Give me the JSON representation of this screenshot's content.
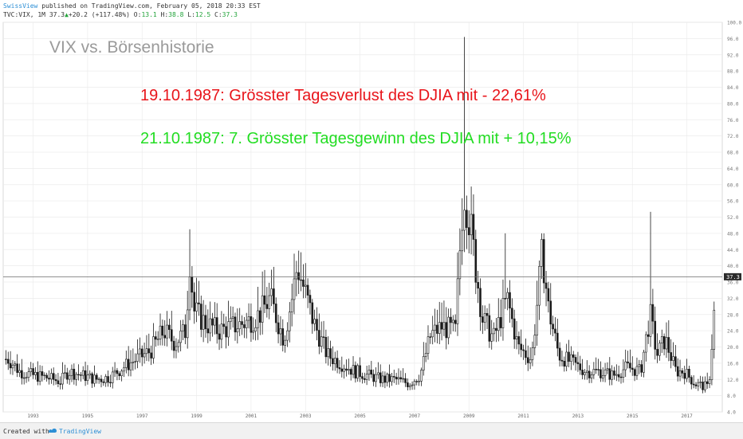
{
  "header": {
    "author": "SwissView",
    "published": "published on TradingView.com, February 05, 2018 20:33 EST",
    "symbol": "TVC:VIX, 1M",
    "last": "37.3",
    "change": "+20.2 (+117.48%)",
    "o_label": "O:",
    "o_value": "13.1",
    "h_label": "H:",
    "h_value": "38.8",
    "l_label": "L:",
    "l_value": "12.5",
    "c_label": "C:",
    "c_value": "37.3"
  },
  "footer": {
    "created": "Created with",
    "brand": "TradingView"
  },
  "colors": {
    "red": "#e8151b",
    "green": "#22dd22",
    "watermark": "#9a9a9a",
    "candle": "#1a1a1a",
    "grid": "#ececec"
  },
  "chart_data": {
    "type": "candlestick",
    "title": "VIX vs. Börsenhistorie",
    "annotations": [
      {
        "text": "19.10.1987: Grösster Tagesverlust des DJIA mit - 22,61%",
        "color": "red"
      },
      {
        "text": "21.10.1987: 7. Grösster Tagesgewinn des DJIA mit + 10,15%",
        "color": "green"
      }
    ],
    "ylim": [
      4,
      100
    ],
    "y_ticks": [
      "4.0",
      "8.0",
      "12.0",
      "16.0",
      "20.0",
      "24.0",
      "28.0",
      "32.0",
      "36.0",
      "40.0",
      "44.0",
      "48.0",
      "52.0",
      "56.0",
      "60.0",
      "64.0",
      "68.0",
      "72.0",
      "76.0",
      "80.0",
      "84.0",
      "88.0",
      "92.0",
      "96.0",
      "100.0"
    ],
    "x_ticks": [
      "1993",
      "1995",
      "1997",
      "1999",
      "2001",
      "2003",
      "2005",
      "2007",
      "2009",
      "2011",
      "2013",
      "2015",
      "2017"
    ],
    "x_range": [
      1991.9,
      2018.3
    ],
    "last_price": 37.3,
    "last_price_label": "37.3",
    "series": [
      {
        "t": 1992.1,
        "v": 17
      },
      {
        "t": 1992.5,
        "v": 14
      },
      {
        "t": 1993.0,
        "v": 13
      },
      {
        "t": 1993.5,
        "v": 12.5
      },
      {
        "t": 1994.0,
        "v": 11.5
      },
      {
        "t": 1994.3,
        "v": 14
      },
      {
        "t": 1994.8,
        "v": 13
      },
      {
        "t": 1995.3,
        "v": 12
      },
      {
        "t": 1995.8,
        "v": 12.5
      },
      {
        "t": 1996.3,
        "v": 15
      },
      {
        "t": 1996.8,
        "v": 17
      },
      {
        "t": 1997.3,
        "v": 19
      },
      {
        "t": 1997.8,
        "v": 24
      },
      {
        "t": 1998.2,
        "v": 21
      },
      {
        "t": 1998.6,
        "v": 24
      },
      {
        "t": 1998.75,
        "v": 42
      },
      {
        "t": 1998.9,
        "v": 29
      },
      {
        "t": 1999.3,
        "v": 26
      },
      {
        "t": 1999.8,
        "v": 24
      },
      {
        "t": 2000.3,
        "v": 25
      },
      {
        "t": 2000.8,
        "v": 26
      },
      {
        "t": 2001.3,
        "v": 28
      },
      {
        "t": 2001.7,
        "v": 32
      },
      {
        "t": 2002.2,
        "v": 22
      },
      {
        "t": 2002.5,
        "v": 32
      },
      {
        "t": 2002.7,
        "v": 40
      },
      {
        "t": 2003.0,
        "v": 33
      },
      {
        "t": 2003.3,
        "v": 26
      },
      {
        "t": 2003.8,
        "v": 18
      },
      {
        "t": 2004.3,
        "v": 16
      },
      {
        "t": 2004.8,
        "v": 14
      },
      {
        "t": 2005.3,
        "v": 13
      },
      {
        "t": 2005.8,
        "v": 12
      },
      {
        "t": 2006.3,
        "v": 12
      },
      {
        "t": 2006.8,
        "v": 11
      },
      {
        "t": 2007.2,
        "v": 13
      },
      {
        "t": 2007.6,
        "v": 23
      },
      {
        "t": 2008.0,
        "v": 25
      },
      {
        "t": 2008.5,
        "v": 24
      },
      {
        "t": 2008.8,
        "v": 60
      },
      {
        "t": 2008.95,
        "v": 55
      },
      {
        "t": 2009.2,
        "v": 42
      },
      {
        "t": 2009.5,
        "v": 27
      },
      {
        "t": 2009.9,
        "v": 22
      },
      {
        "t": 2010.4,
        "v": 32
      },
      {
        "t": 2010.8,
        "v": 20
      },
      {
        "t": 2011.3,
        "v": 17
      },
      {
        "t": 2011.7,
        "v": 44
      },
      {
        "t": 2011.9,
        "v": 30
      },
      {
        "t": 2012.3,
        "v": 18
      },
      {
        "t": 2012.8,
        "v": 16
      },
      {
        "t": 2013.3,
        "v": 14
      },
      {
        "t": 2013.8,
        "v": 14
      },
      {
        "t": 2014.3,
        "v": 13
      },
      {
        "t": 2014.8,
        "v": 15
      },
      {
        "t": 2015.3,
        "v": 14
      },
      {
        "t": 2015.65,
        "v": 28
      },
      {
        "t": 2015.9,
        "v": 18
      },
      {
        "t": 2016.2,
        "v": 22
      },
      {
        "t": 2016.6,
        "v": 14
      },
      {
        "t": 2016.9,
        "v": 14
      },
      {
        "t": 2017.3,
        "v": 11
      },
      {
        "t": 2017.8,
        "v": 10
      },
      {
        "t": 2018.1,
        "v": 37.3
      }
    ]
  }
}
